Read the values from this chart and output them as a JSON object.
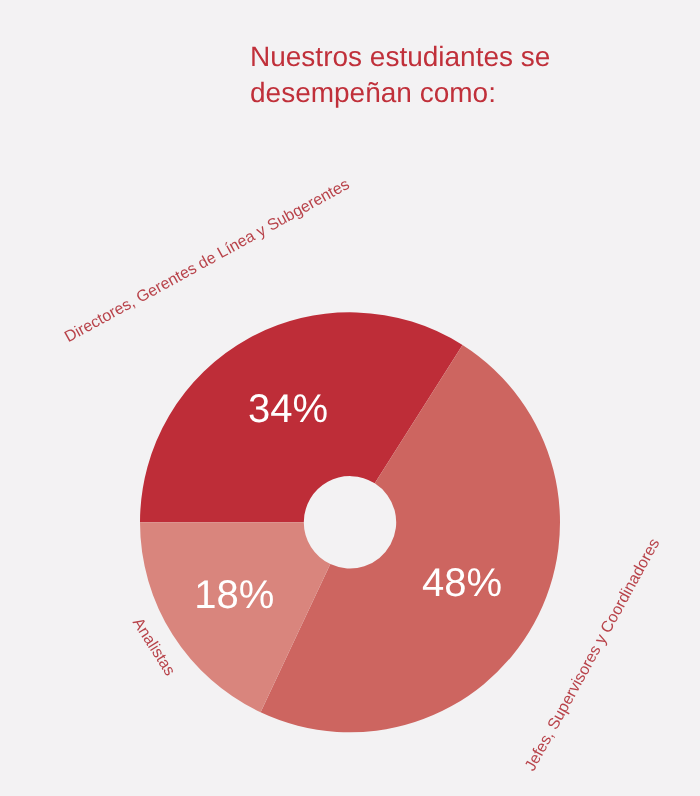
{
  "chart_data": {
    "type": "donut",
    "title": "Nuestros estudiantes se desempeñan como:",
    "categories": [
      "Directores, Gerentes de Línea y Subgerentes",
      "Jefes, Supervisores y Coordinadores",
      "Analistas"
    ],
    "values": [
      34,
      48,
      18
    ],
    "value_labels": [
      "34%",
      "48%",
      "18%"
    ],
    "colors": [
      "#be2d38",
      "#cd6560",
      "#d9857d"
    ],
    "legend": false
  }
}
